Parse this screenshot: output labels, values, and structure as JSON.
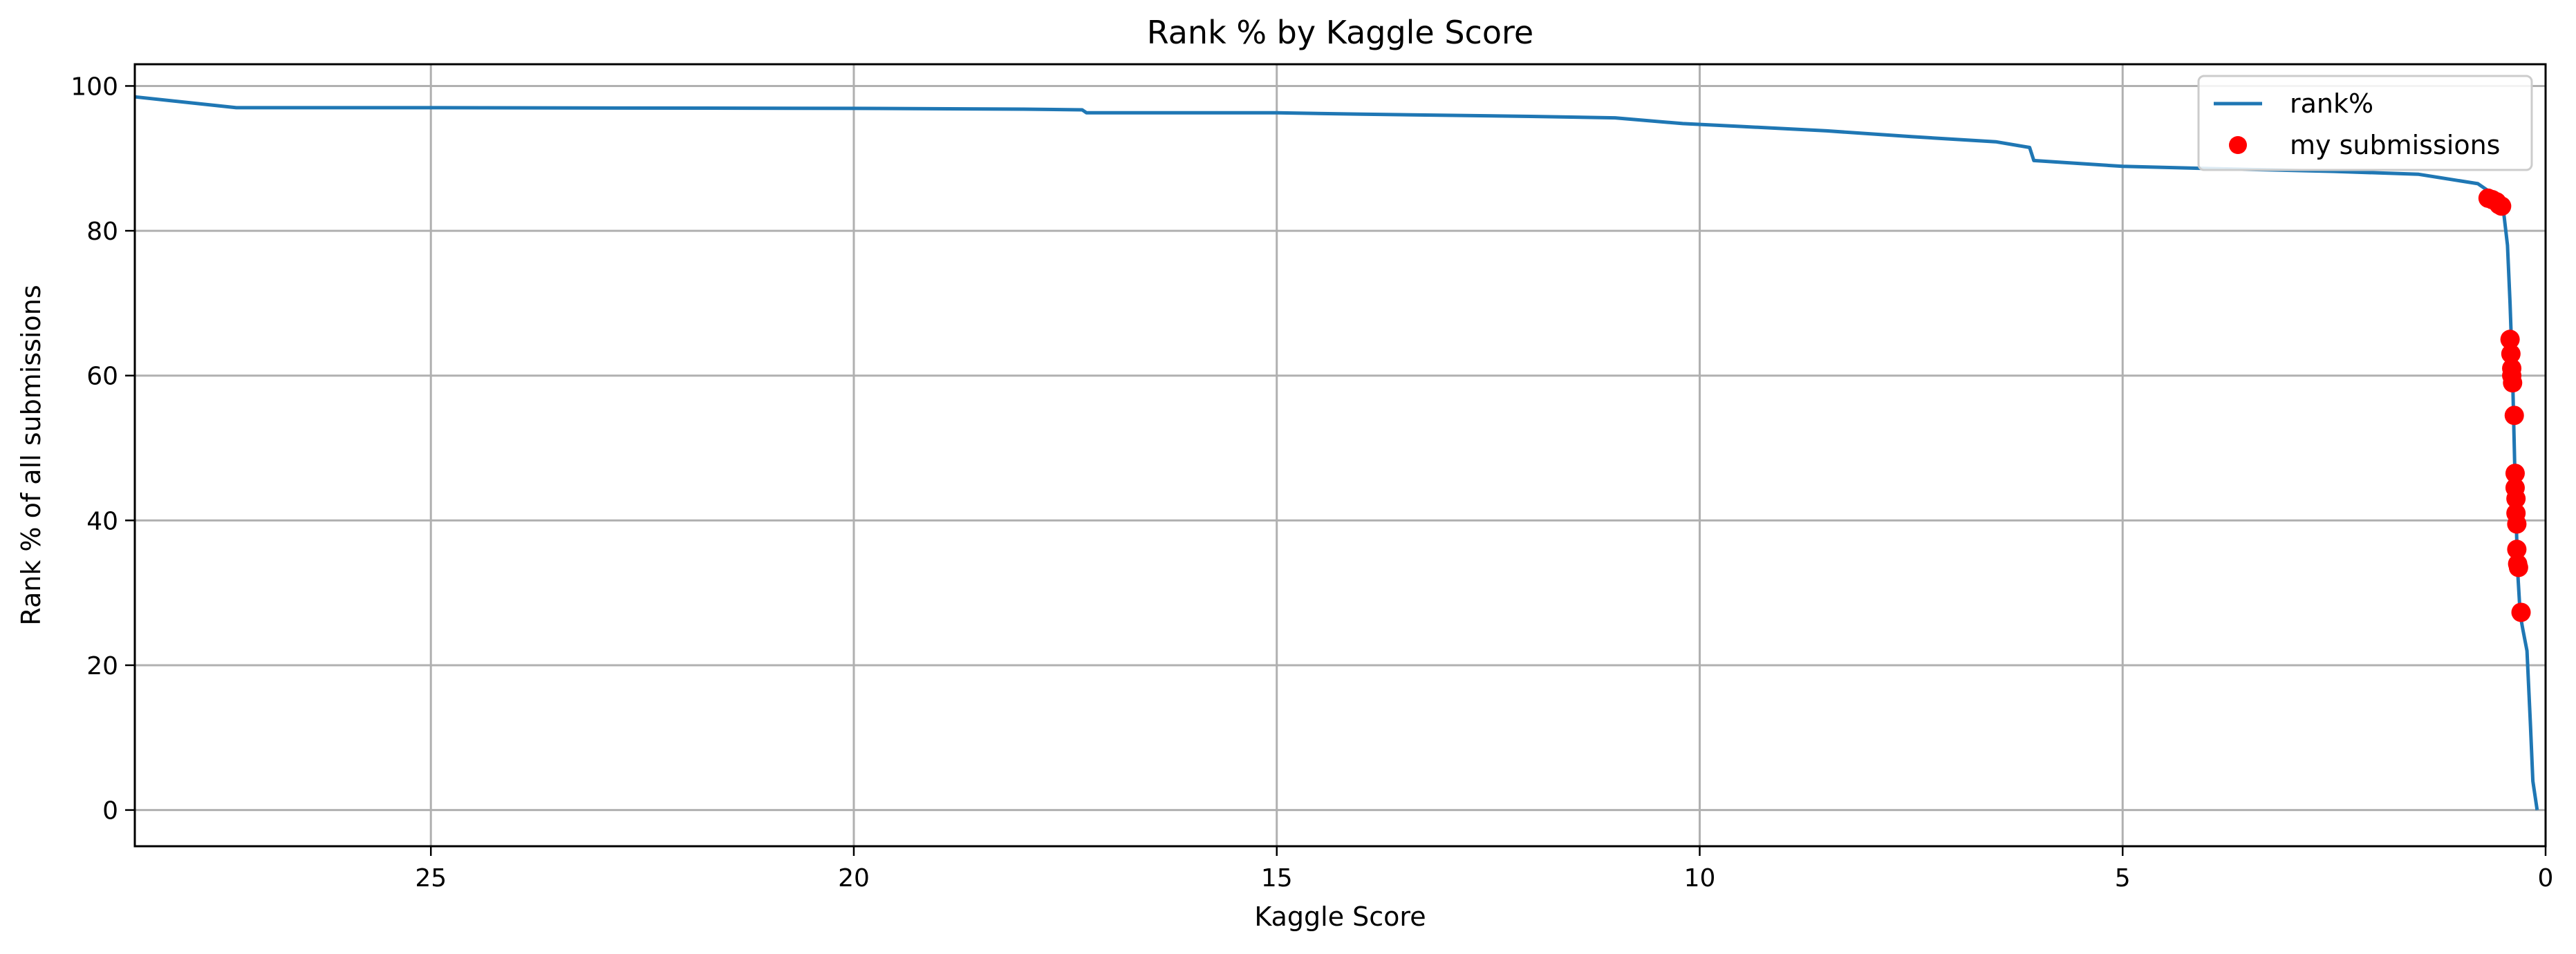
{
  "chart_data": {
    "type": "line",
    "title": "Rank % by Kaggle Score",
    "xlabel": "Kaggle Score",
    "ylabel": "Rank % of all submissions",
    "xlim": [
      28.5,
      0
    ],
    "ylim": [
      -5,
      103
    ],
    "x_inverted": true,
    "grid": true,
    "legend_position": "top-right",
    "x_ticks": [
      25,
      20,
      15,
      10,
      5,
      0
    ],
    "y_ticks": [
      0,
      20,
      40,
      60,
      80,
      100
    ],
    "series": [
      {
        "name": "rank%",
        "type": "line",
        "color": "#1f77b4",
        "points": [
          [
            28.5,
            98.5
          ],
          [
            27.3,
            97.0
          ],
          [
            25.0,
            97.0
          ],
          [
            20.0,
            96.9
          ],
          [
            18.0,
            96.8
          ],
          [
            17.3,
            96.7
          ],
          [
            17.25,
            96.3
          ],
          [
            15.0,
            96.3
          ],
          [
            14.0,
            96.1
          ],
          [
            12.0,
            95.8
          ],
          [
            11.0,
            95.6
          ],
          [
            10.2,
            94.8
          ],
          [
            9.5,
            94.4
          ],
          [
            8.5,
            93.8
          ],
          [
            7.5,
            93.0
          ],
          [
            6.5,
            92.3
          ],
          [
            6.1,
            91.5
          ],
          [
            6.05,
            89.7
          ],
          [
            5.0,
            88.9
          ],
          [
            4.0,
            88.6
          ],
          [
            2.5,
            88.2
          ],
          [
            1.5,
            87.8
          ],
          [
            0.8,
            86.5
          ],
          [
            0.55,
            84.5
          ],
          [
            0.5,
            83.0
          ],
          [
            0.45,
            78.0
          ],
          [
            0.42,
            70.0
          ],
          [
            0.39,
            60.0
          ],
          [
            0.36,
            45.0
          ],
          [
            0.33,
            33.0
          ],
          [
            0.3,
            27.0
          ],
          [
            0.27,
            25.0
          ],
          [
            0.22,
            22.0
          ],
          [
            0.18,
            12.0
          ],
          [
            0.15,
            4.0
          ],
          [
            0.1,
            0.0
          ]
        ]
      },
      {
        "name": "my submissions",
        "type": "scatter",
        "color": "#ff0000",
        "points": [
          [
            0.68,
            84.5
          ],
          [
            0.63,
            84.3
          ],
          [
            0.58,
            84.0
          ],
          [
            0.55,
            83.6
          ],
          [
            0.52,
            83.4
          ],
          [
            0.42,
            65.0
          ],
          [
            0.41,
            63.0
          ],
          [
            0.4,
            61.0
          ],
          [
            0.4,
            60.0
          ],
          [
            0.39,
            59.0
          ],
          [
            0.37,
            54.5
          ],
          [
            0.36,
            46.5
          ],
          [
            0.36,
            44.5
          ],
          [
            0.35,
            43.0
          ],
          [
            0.35,
            41.0
          ],
          [
            0.34,
            39.5
          ],
          [
            0.34,
            36.0
          ],
          [
            0.33,
            34.0
          ],
          [
            0.32,
            33.5
          ],
          [
            0.29,
            27.3
          ]
        ]
      }
    ]
  }
}
